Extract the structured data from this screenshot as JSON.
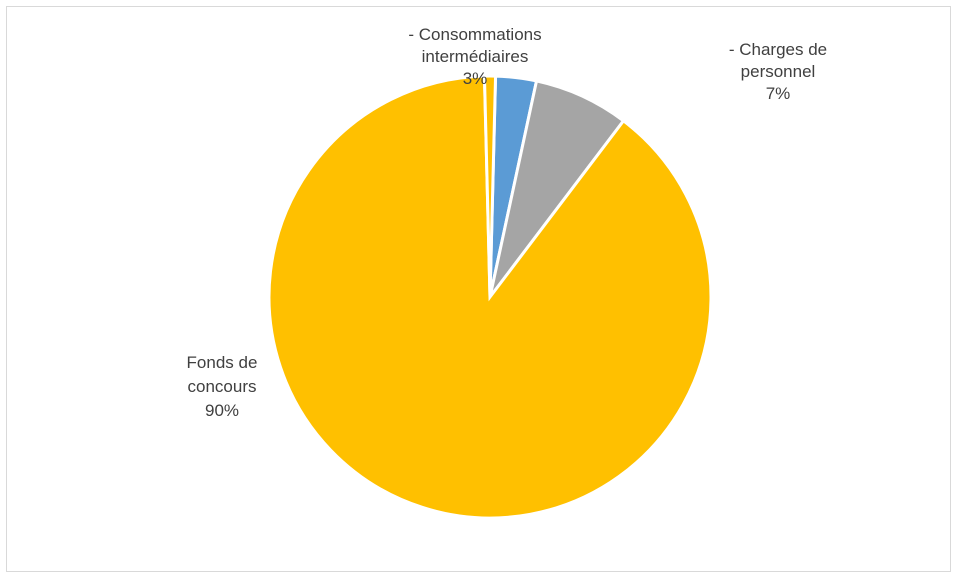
{
  "chart_data": {
    "type": "pie",
    "title": "",
    "categories": [
      "- Consommations intermédiaires",
      "- Charges de personnel",
      "Fonds de concours"
    ],
    "values": [
      3,
      7,
      90
    ],
    "value_labels": [
      "3%",
      "7%",
      "90%"
    ],
    "label_lines": [
      [
        "- Consommations",
        "intermédiaires",
        "3%"
      ],
      [
        "- Charges de",
        "personnel",
        "7%"
      ],
      [
        "Fonds de",
        "concours",
        "90%"
      ]
    ],
    "colors": [
      "#5b9bd5",
      "#a5a5a5",
      "#ffc000"
    ],
    "legend": "none"
  }
}
